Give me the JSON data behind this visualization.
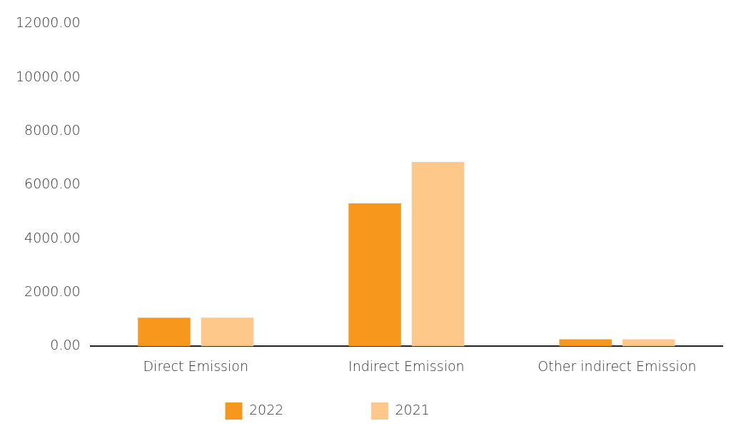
{
  "chart_data": {
    "type": "bar",
    "categories": [
      "Direct Emission",
      "Indirect Emission",
      "Other indirect Emission"
    ],
    "series": [
      {
        "name": "2022",
        "color": "#f7981d",
        "values": [
          1060,
          5320,
          260
        ]
      },
      {
        "name": "2021",
        "color": "#fdc88a",
        "values": [
          1060,
          6860,
          260
        ]
      }
    ],
    "ylim": [
      0,
      12000
    ],
    "yticks": [
      {
        "value": 0,
        "label": "0.00"
      },
      {
        "value": 2000,
        "label": "2000.00"
      },
      {
        "value": 4000,
        "label": "4000.00"
      },
      {
        "value": 6000,
        "label": "6000.00"
      },
      {
        "value": 8000,
        "label": "8000.00"
      },
      {
        "value": 10000,
        "label": "10000.00"
      },
      {
        "value": 12000,
        "label": "12000.00"
      }
    ],
    "grid": false,
    "legend": "bottom"
  }
}
